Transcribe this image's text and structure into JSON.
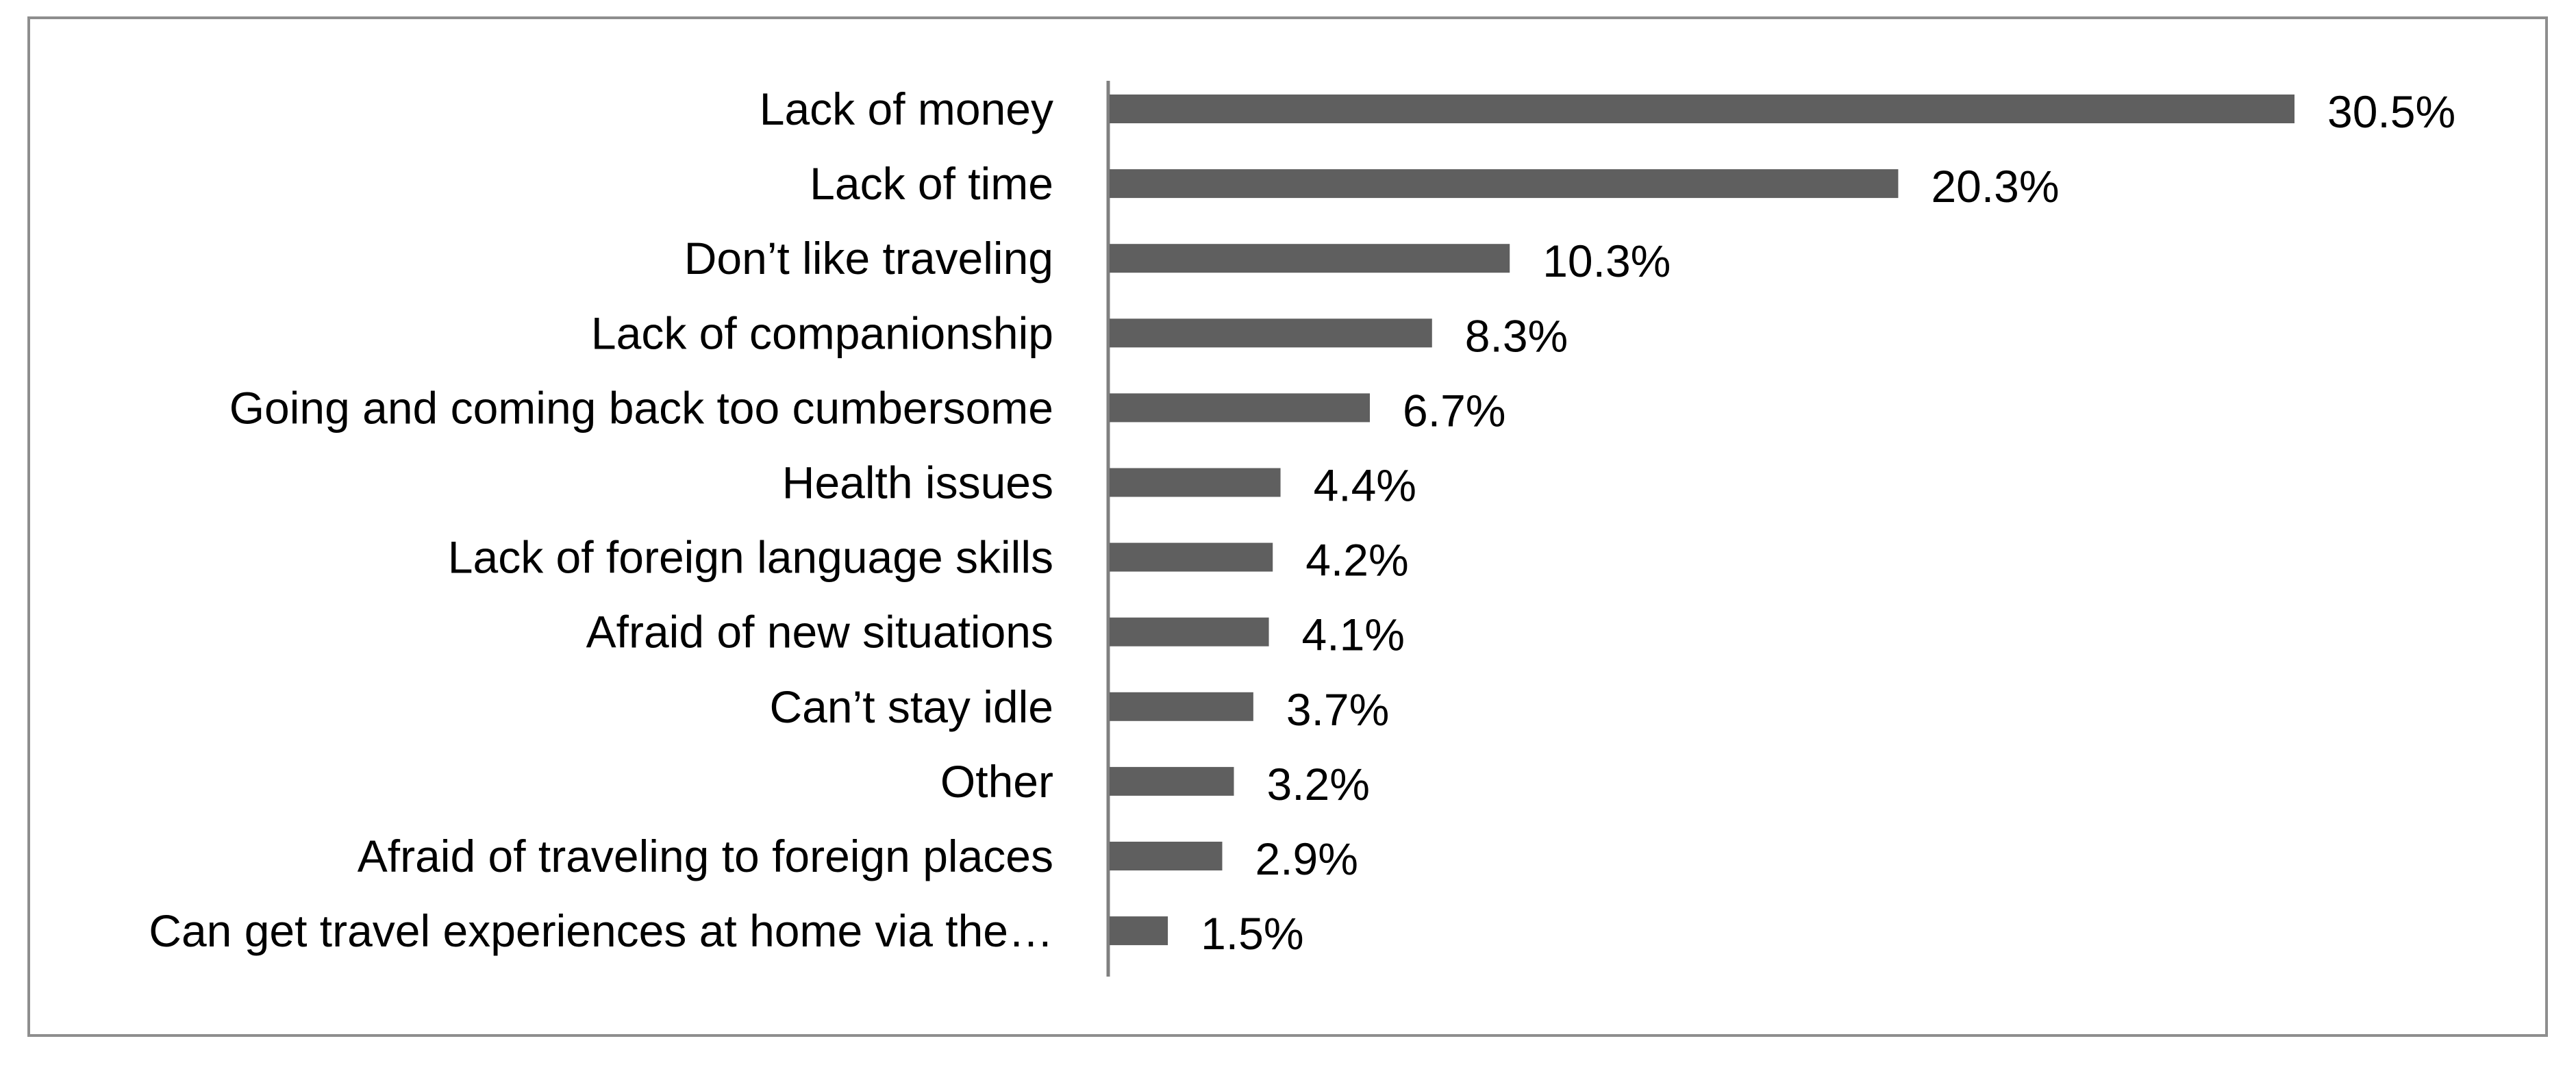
{
  "chart_data": {
    "type": "bar",
    "orientation": "horizontal",
    "categories": [
      "Lack of money",
      "Lack of time",
      "Don’t like traveling",
      "Lack of companionship",
      "Going and coming back too cumbersome",
      "Health issues",
      "Lack of foreign language skills",
      "Afraid of new situations",
      "Can’t stay idle",
      "Other",
      "Afraid of traveling to foreign places",
      "Can get travel experiences at home via the…"
    ],
    "values": [
      30.5,
      20.3,
      10.3,
      8.3,
      6.7,
      4.4,
      4.2,
      4.1,
      3.7,
      3.2,
      2.9,
      1.5
    ],
    "value_labels": [
      "30.5%",
      "20.3%",
      "10.3%",
      "8.3%",
      "6.7%",
      "4.4%",
      "4.2%",
      "4.1%",
      "3.7%",
      "3.2%",
      "2.9%",
      "1.5%"
    ],
    "xlim": [
      0,
      30.5
    ],
    "grid": false,
    "legend": "none",
    "colors": {
      "bar": "#5f5f5f",
      "axis": "#808080",
      "border": "#8e8e8e"
    }
  }
}
